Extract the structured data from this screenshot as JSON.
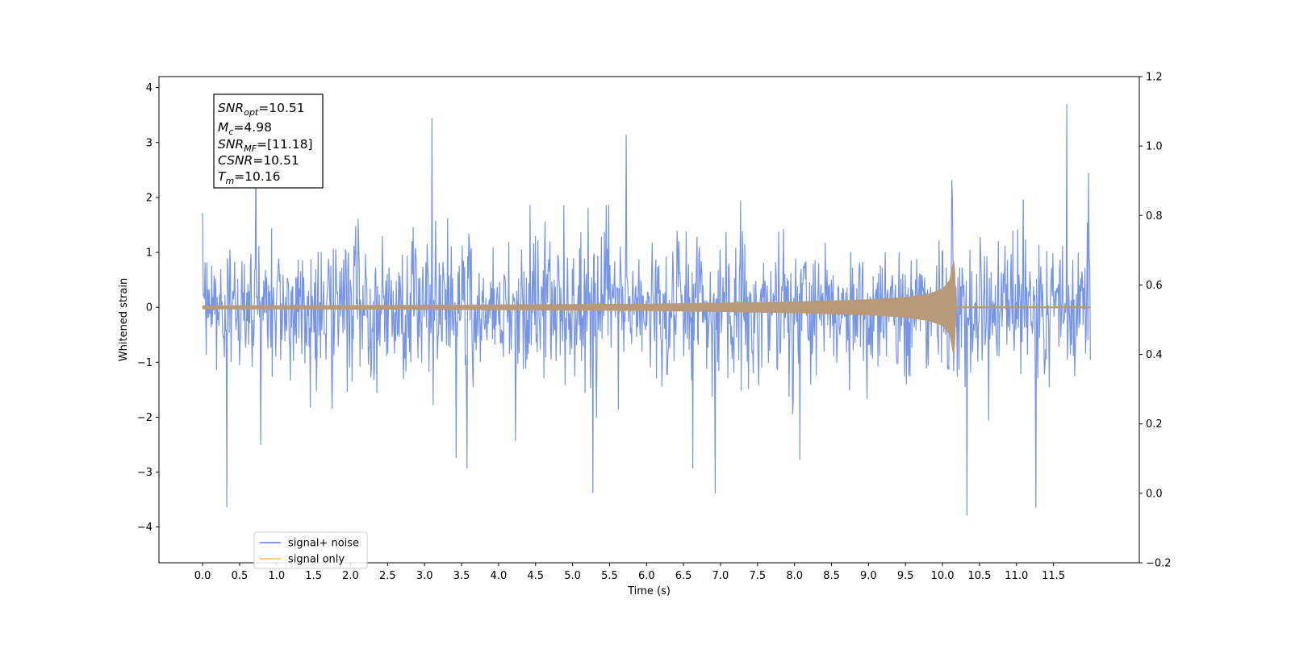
{
  "chart_data": {
    "type": "line",
    "xlabel": "Time (s)",
    "ylabel": "Whitened strain",
    "x_ticks": [
      0.0,
      0.5,
      1.0,
      1.5,
      2.0,
      2.5,
      3.0,
      3.5,
      4.0,
      4.5,
      5.0,
      5.5,
      6.0,
      6.5,
      7.0,
      7.5,
      8.0,
      8.5,
      9.0,
      9.5,
      10.0,
      10.5,
      11.0,
      11.5
    ],
    "x_tick_labels": [
      "0.0",
      "0.5",
      "1.0",
      "1.5",
      "2.0",
      "2.5",
      "3.0",
      "3.5",
      "4.0",
      "4.5",
      "5.0",
      "5.5",
      "6.0",
      "6.5",
      "7.0",
      "7.5",
      "8.0",
      "8.5",
      "9.0",
      "9.5",
      "10.0",
      "10.5",
      "11.0",
      "11.5"
    ],
    "xlim": [
      -0.59,
      12.66
    ],
    "ylim": [
      -4.65,
      4.2
    ],
    "y_ticks": [
      -4,
      -3,
      -2,
      -1,
      0,
      1,
      2,
      3,
      4
    ],
    "y_tick_labels": [
      "−4",
      "−3",
      "−2",
      "−1",
      "0",
      "1",
      "2",
      "3",
      "4"
    ],
    "y2lim": [
      -0.2,
      1.2
    ],
    "y2_ticks": [
      -0.2,
      0.0,
      0.2,
      0.4,
      0.6,
      0.8,
      1.0,
      1.2
    ],
    "y2_tick_labels": [
      "−0.2",
      "0.0",
      "0.2",
      "0.4",
      "0.6",
      "0.8",
      "1.0",
      "1.2"
    ],
    "grid": false,
    "legend_position": "lower-left",
    "series": [
      {
        "name": "signal+ noise",
        "color": "#6f8fe6",
        "x_range": [
          0.0,
          12.0
        ],
        "noise_band": [
          -1.5,
          1.5
        ],
        "peak_max": 3.8,
        "peak_min": -4.2
      },
      {
        "name": "signal only",
        "color": "#ffc46b",
        "x": [
          0.0,
          2.0,
          4.0,
          6.0,
          8.0,
          9.0,
          9.5,
          9.8,
          10.0,
          10.1,
          10.16,
          10.18,
          12.0
        ],
        "envelope": [
          0.03,
          0.035,
          0.045,
          0.06,
          0.1,
          0.14,
          0.18,
          0.24,
          0.33,
          0.5,
          0.95,
          0.0,
          0.0
        ]
      }
    ],
    "annotation": {
      "lines": [
        {
          "sym": "SNR",
          "sub": "opt",
          "value": "=10.51"
        },
        {
          "sym": "M",
          "sub": "c",
          "value": "=4.98"
        },
        {
          "sym": "SNR",
          "sub": "MF",
          "value": "=[11.18]"
        },
        {
          "sym": "CSNR",
          "sub": "",
          "value": "=10.51"
        },
        {
          "sym": "T",
          "sub": "m",
          "value": "=10.16"
        }
      ]
    },
    "overlap_color": "#b89a78"
  }
}
